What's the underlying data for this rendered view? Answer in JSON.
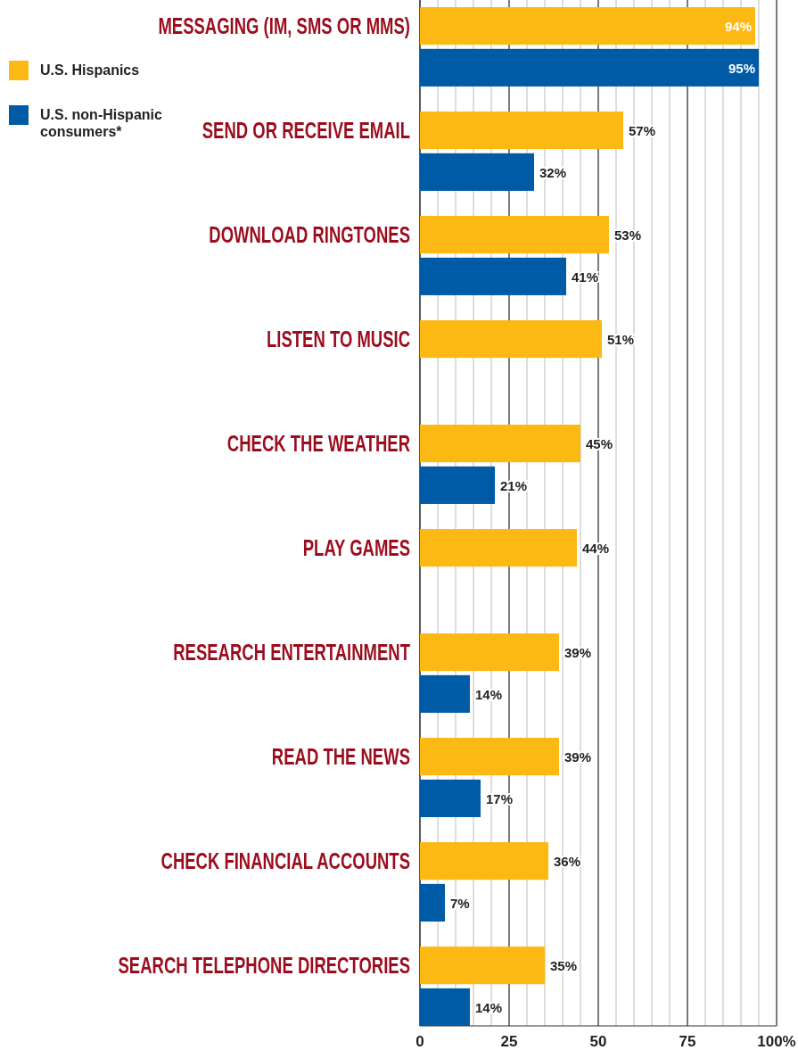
{
  "chart_data": {
    "type": "bar",
    "orientation": "horizontal",
    "categories": [
      "MESSAGING (IM, SMS OR MMS)",
      "SEND OR RECEIVE EMAIL",
      "DOWNLOAD RINGTONES",
      "LISTEN TO MUSIC",
      "CHECK THE WEATHER",
      "PLAY GAMES",
      "RESEARCH ENTERTAINMENT",
      "READ THE NEWS",
      "CHECK FINANCIAL ACCOUNTS",
      "SEARCH TELEPHONE DIRECTORIES"
    ],
    "series": [
      {
        "name": "U.S. Hispanics",
        "color": "#fdb913",
        "values": [
          94,
          57,
          53,
          51,
          45,
          44,
          39,
          39,
          36,
          35
        ],
        "value_labels": [
          "94%",
          "57%",
          "53%",
          "51%",
          "45%",
          "44%",
          "39%",
          "39%",
          "36%",
          "35%"
        ]
      },
      {
        "name": "U.S. non-Hispanic consumers*",
        "color": "#005ba6",
        "values": [
          95,
          32,
          41,
          null,
          21,
          null,
          14,
          17,
          7,
          14
        ],
        "value_labels": [
          "95%",
          "32%",
          "41%",
          null,
          "21%",
          null,
          "14%",
          "17%",
          "7%",
          "14%"
        ]
      }
    ],
    "xlim": [
      0,
      100
    ],
    "xticks": [
      0,
      {
        "value": 5,
        "label": null
      },
      {
        "value": 10,
        "label": null
      },
      {
        "value": 15,
        "label": null
      },
      {
        "value": 20,
        "label": null
      },
      25,
      {
        "value": 30,
        "label": null
      },
      {
        "value": 35,
        "label": null
      },
      {
        "value": 40,
        "label": null
      },
      {
        "value": 45,
        "label": null
      },
      50,
      {
        "value": 55,
        "label": null
      },
      {
        "value": 60,
        "label": null
      },
      {
        "value": 65,
        "label": null
      },
      {
        "value": 70,
        "label": null
      },
      75,
      {
        "value": 80,
        "label": null
      },
      {
        "value": 85,
        "label": null
      },
      {
        "value": 90,
        "label": null
      },
      {
        "value": 95,
        "label": null
      },
      {
        "value": 100,
        "label": "100%"
      }
    ],
    "grid": "x",
    "legend": "top left"
  }
}
